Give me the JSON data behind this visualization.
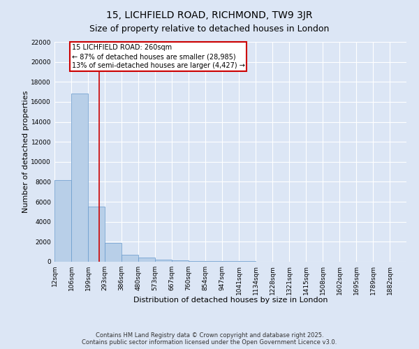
{
  "title": "15, LICHFIELD ROAD, RICHMOND, TW9 3JR",
  "subtitle": "Size of property relative to detached houses in London",
  "xlabel": "Distribution of detached houses by size in London",
  "ylabel": "Number of detached properties",
  "bar_color": "#b8cfe8",
  "bar_edge_color": "#6699cc",
  "background_color": "#dce6f5",
  "grid_color": "#ffffff",
  "bin_labels": [
    "12sqm",
    "106sqm",
    "199sqm",
    "293sqm",
    "386sqm",
    "480sqm",
    "573sqm",
    "667sqm",
    "760sqm",
    "854sqm",
    "947sqm",
    "1041sqm",
    "1134sqm",
    "1228sqm",
    "1321sqm",
    "1415sqm",
    "1508sqm",
    "1602sqm",
    "1695sqm",
    "1789sqm",
    "1882sqm"
  ],
  "bin_edges": [
    12,
    106,
    199,
    293,
    386,
    480,
    573,
    667,
    760,
    854,
    947,
    1041,
    1134,
    1228,
    1321,
    1415,
    1508,
    1602,
    1695,
    1789,
    1882
  ],
  "bar_heights": [
    8200,
    16800,
    5500,
    1900,
    700,
    400,
    200,
    150,
    100,
    80,
    60,
    40,
    30,
    20,
    15,
    10,
    8,
    5,
    4,
    3
  ],
  "ylim": [
    0,
    22000
  ],
  "yticks": [
    0,
    2000,
    4000,
    6000,
    8000,
    10000,
    12000,
    14000,
    16000,
    18000,
    20000,
    22000
  ],
  "property_size": 260,
  "annotation_line1": "15 LICHFIELD ROAD: 260sqm",
  "annotation_line2": "← 87% of detached houses are smaller (28,985)",
  "annotation_line3": "13% of semi-detached houses are larger (4,427) →",
  "red_line_color": "#cc0000",
  "annotation_box_color": "#cc0000",
  "footer_text": "Contains HM Land Registry data © Crown copyright and database right 2025.\nContains public sector information licensed under the Open Government Licence v3.0.",
  "title_fontsize": 10,
  "subtitle_fontsize": 9,
  "axis_label_fontsize": 8,
  "tick_fontsize": 6.5,
  "annotation_fontsize": 7,
  "footer_fontsize": 6
}
